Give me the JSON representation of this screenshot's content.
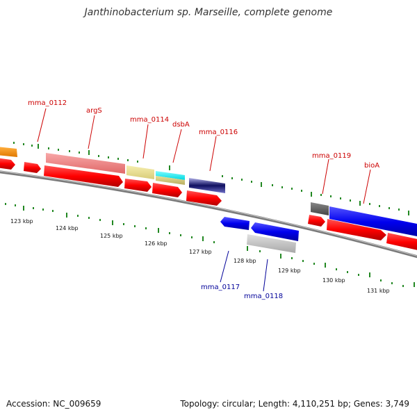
{
  "title": "Janthinobacterium sp. Marseille, complete genome",
  "footer": {
    "accession": "Accession: NC_009659",
    "topology": "Topology: circular; Length: 4,110,251 bp; Genes: 3,749"
  },
  "colors": {
    "forward_label": "#cc0000",
    "reverse_label": "#000099",
    "cds_forward": "#ff0000",
    "cds_reverse": "#0000ee",
    "tick": "#228822",
    "backbone": "#808080"
  },
  "ruler": [
    "123 kbp",
    "124 kbp",
    "125 kbp",
    "126 kbp",
    "127 kbp",
    "128 kbp",
    "129 kbp",
    "130 kbp",
    "131 kbp"
  ],
  "forward_gene_labels": [
    "mma_0112",
    "argS",
    "mma_0114",
    "dsbA",
    "mma_0116",
    "mma_0119",
    "bioA"
  ],
  "reverse_gene_labels": [
    "mma_0117",
    "mma_0118"
  ]
}
